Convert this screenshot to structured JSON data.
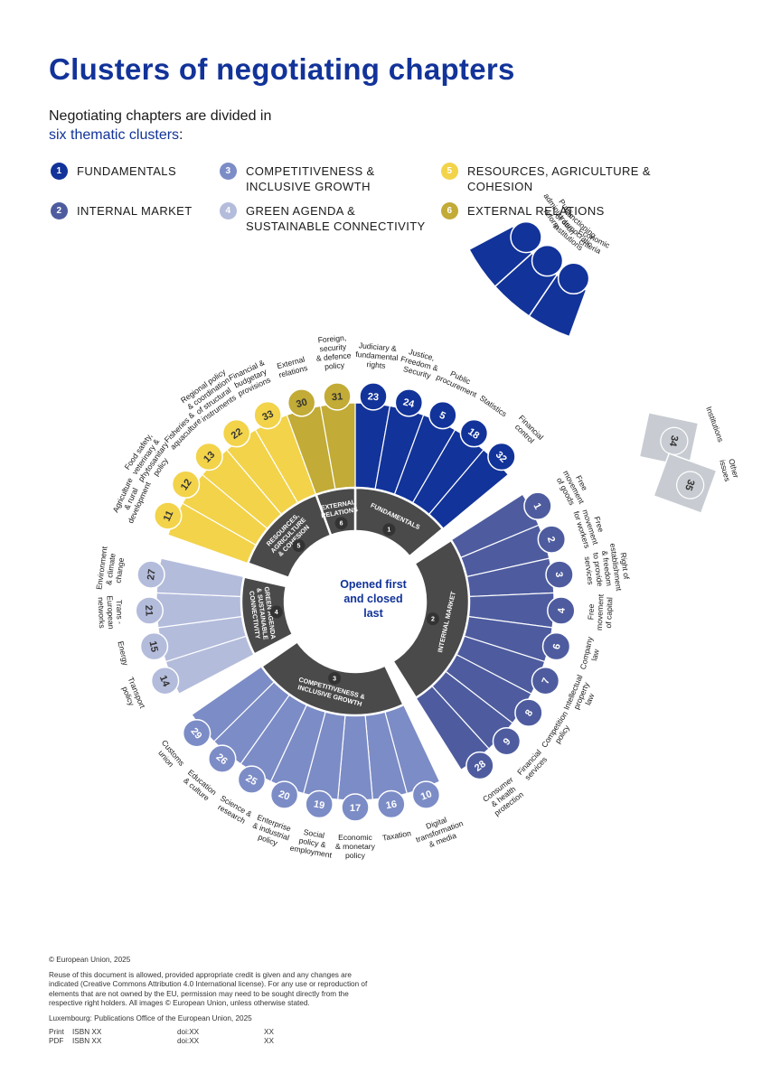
{
  "title": "Clusters of negotiating chapters",
  "subtitle": {
    "line1": "Negotiating chapters are divided in",
    "highlight": "six thematic clusters",
    "suffix": ":"
  },
  "legend": [
    {
      "number": "1",
      "label": "FUNDAMENTALS",
      "color": "#123399"
    },
    {
      "number": "2",
      "label": "INTERNAL MARKET",
      "color": "#4e5c9f"
    },
    {
      "number": "3",
      "label": "COMPETITIVENESS &\nINCLUSIVE GROWTH",
      "color": "#7c8cc6"
    },
    {
      "number": "4",
      "label": "GREEN AGENDA &\nSUSTAINABLE CONNECTIVITY",
      "color": "#b4bcdc"
    },
    {
      "number": "5",
      "label": "RESOURCES, AGRICULTURE &\nCOHESION",
      "color": "#f2d34a"
    },
    {
      "number": "6",
      "label": "EXTERNAL RELATIONS",
      "color": "#c2ab36"
    }
  ],
  "center_text": [
    "Opened first",
    "and closed",
    "last"
  ],
  "clusters": [
    {
      "number": "1",
      "label": [
        "FUNDAMENTALS"
      ],
      "color": "#123399",
      "chapters": [
        {
          "number": "23",
          "name": [
            "Judiciary &",
            "fundamental",
            "rights"
          ]
        },
        {
          "number": "24",
          "name": [
            "Justice,",
            "Freedom &",
            "Security"
          ]
        },
        {
          "number": "5",
          "name": [
            "Public",
            "procurement"
          ]
        },
        {
          "number": "18",
          "name": [
            "Statistics"
          ]
        },
        {
          "number": "32",
          "name": [
            "Financial",
            "control"
          ]
        }
      ]
    },
    {
      "number": "2",
      "label": [
        "INTERNAL MARKET"
      ],
      "color": "#4e5c9f",
      "chapters": [
        {
          "number": "1",
          "name": [
            "Free",
            "movement",
            "of goods"
          ]
        },
        {
          "number": "2",
          "name": [
            "Free",
            "movement",
            "for workers"
          ]
        },
        {
          "number": "3",
          "name": [
            "Right of",
            "establishment",
            "& freedom",
            "to provide",
            "services"
          ]
        },
        {
          "number": "4",
          "name": [
            "Free",
            "movement",
            "of capital"
          ]
        },
        {
          "number": "6",
          "name": [
            "Company",
            "law"
          ]
        },
        {
          "number": "7",
          "name": [
            "Intellectual",
            "property",
            "law"
          ]
        },
        {
          "number": "8",
          "name": [
            "Competition",
            "policy"
          ]
        },
        {
          "number": "9",
          "name": [
            "Financial",
            "services"
          ]
        },
        {
          "number": "28",
          "name": [
            "Consumer",
            "& health",
            "protection"
          ]
        }
      ]
    },
    {
      "number": "3",
      "label": [
        "COMPETITIVENESS &",
        "INCLUSIVE GROWTH"
      ],
      "color": "#7c8cc6",
      "chapters": [
        {
          "number": "10",
          "name": [
            "Digital",
            "transformation",
            "& media"
          ]
        },
        {
          "number": "16",
          "name": [
            "Taxation"
          ]
        },
        {
          "number": "17",
          "name": [
            "Economic",
            "& monetary",
            "policy"
          ]
        },
        {
          "number": "19",
          "name": [
            "Social",
            "policy &",
            "employment"
          ]
        },
        {
          "number": "20",
          "name": [
            "Enterprise",
            "& industrial",
            "policy"
          ]
        },
        {
          "number": "25",
          "name": [
            "Science &",
            "research"
          ]
        },
        {
          "number": "26",
          "name": [
            "Education",
            "& culture"
          ]
        },
        {
          "number": "29",
          "name": [
            "Customs",
            "union"
          ]
        }
      ]
    },
    {
      "number": "4",
      "label": [
        "GREEN AGENDA",
        "& SUSTAINABLE",
        "CONNECTIVITY"
      ],
      "color": "#b4bcdc",
      "chapters": [
        {
          "number": "14",
          "name": [
            "Transport",
            "policy"
          ]
        },
        {
          "number": "15",
          "name": [
            "Energy"
          ]
        },
        {
          "number": "21",
          "name": [
            "Trans -",
            "European",
            "networks"
          ]
        },
        {
          "number": "27",
          "name": [
            "Environment",
            "& climate",
            "change"
          ]
        }
      ]
    },
    {
      "number": "5",
      "label": [
        "RESOURCES,",
        "AGRICULTURE",
        "& COHESION"
      ],
      "color": "#f2d34a",
      "chapters": [
        {
          "number": "11",
          "name": [
            "Agriculture",
            "& rural",
            "development"
          ]
        },
        {
          "number": "12",
          "name": [
            "Food safety,",
            "veterinary &",
            "phytosanitary",
            "policy"
          ]
        },
        {
          "number": "13",
          "name": [
            "Fisheries &",
            "aquaculture"
          ]
        },
        {
          "number": "22",
          "name": [
            "Regional policy",
            "& coordination",
            "of structural",
            "instruments"
          ]
        },
        {
          "number": "33",
          "name": [
            "Financial &",
            "budgetary",
            "provisions"
          ]
        }
      ]
    },
    {
      "number": "6",
      "label": [
        "EXTERNAL",
        "RELATIONS"
      ],
      "color": "#c2ab36",
      "chapters": [
        {
          "number": "30",
          "name": [
            "External",
            "relations"
          ]
        },
        {
          "number": "31",
          "name": [
            "Foreign,",
            "security",
            "& defence",
            "policy"
          ]
        }
      ]
    }
  ],
  "fundamentals_extra": {
    "color": "#123399",
    "items": [
      {
        "name": [
          "Economic",
          "criteria"
        ]
      },
      {
        "name": [
          "Functioning",
          "of democratic",
          "institutions"
        ]
      },
      {
        "name": [
          "Public",
          "administration",
          "reform"
        ]
      }
    ]
  },
  "other_issues": {
    "color": "#c8ccd2",
    "chapters": [
      {
        "number": "34",
        "name": [
          "Institutions"
        ]
      },
      {
        "number": "35",
        "name": [
          "Other",
          "issues"
        ]
      }
    ]
  },
  "footer": {
    "copyright": "© European Union, 2025",
    "reuse": "Reuse of this document is allowed, provided appropriate credit is given and any changes are indicated (Creative Commons Attribution 4.0 International license). For any use or reproduction of elements that are not owned by the EU, permission may need to be sought directly from the respective right holders. All images © European Union, unless otherwise stated.",
    "publisher": "Luxembourg: Publications Office of the European Union, 2025",
    "rows": [
      {
        "type": "Print",
        "isbn": "ISBN XX",
        "doi": "doi:XX",
        "catalogue": "XX"
      },
      {
        "type": "PDF",
        "isbn": "ISBN XX",
        "doi": "doi:XX",
        "catalogue": "XX"
      }
    ]
  }
}
